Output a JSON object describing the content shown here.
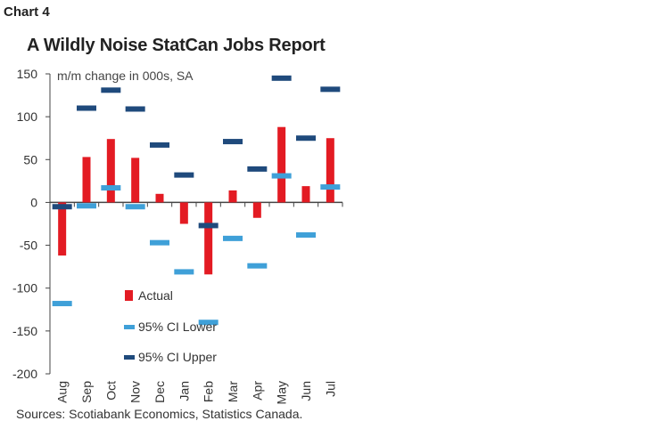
{
  "label": "Chart 4",
  "chart_data": {
    "type": "bar",
    "title": "A Wildly Noise StatCan Jobs Report",
    "ylabel": "m/m change in 000s, SA",
    "categories": [
      "Aug",
      "Sep",
      "Oct",
      "Nov",
      "Dec",
      "Jan",
      "Feb",
      "Mar",
      "Apr",
      "May",
      "Jun",
      "Jul"
    ],
    "ylim": [
      -200,
      150
    ],
    "yticks": [
      150,
      100,
      50,
      0,
      -50,
      -100,
      -150,
      -200
    ],
    "ytick_labels": [
      "150",
      "100",
      "50",
      "0",
      "-50",
      "-100",
      "-150",
      "-200"
    ],
    "series": [
      {
        "name": "Actual",
        "kind": "bar",
        "color": "#e31b23",
        "values": [
          -62,
          53,
          74,
          52,
          10,
          -25,
          -84,
          14,
          -18,
          88,
          19,
          75
        ]
      },
      {
        "name": "95% CI Lower",
        "kind": "marker",
        "color": "#3fa0d8",
        "values": [
          -118,
          -4,
          17,
          -5,
          -47,
          -81,
          -140,
          -42,
          -74,
          31,
          -38,
          18
        ]
      },
      {
        "name": "95% CI Upper",
        "kind": "marker",
        "color": "#1f4a7c",
        "values": [
          -5,
          110,
          131,
          109,
          67,
          32,
          -27,
          71,
          39,
          145,
          75,
          132
        ]
      }
    ],
    "legend": [
      "Actual",
      "95% CI Lower",
      "95% CI Upper"
    ],
    "source": "Sources: Scotiabank Economics, Statistics Canada."
  }
}
